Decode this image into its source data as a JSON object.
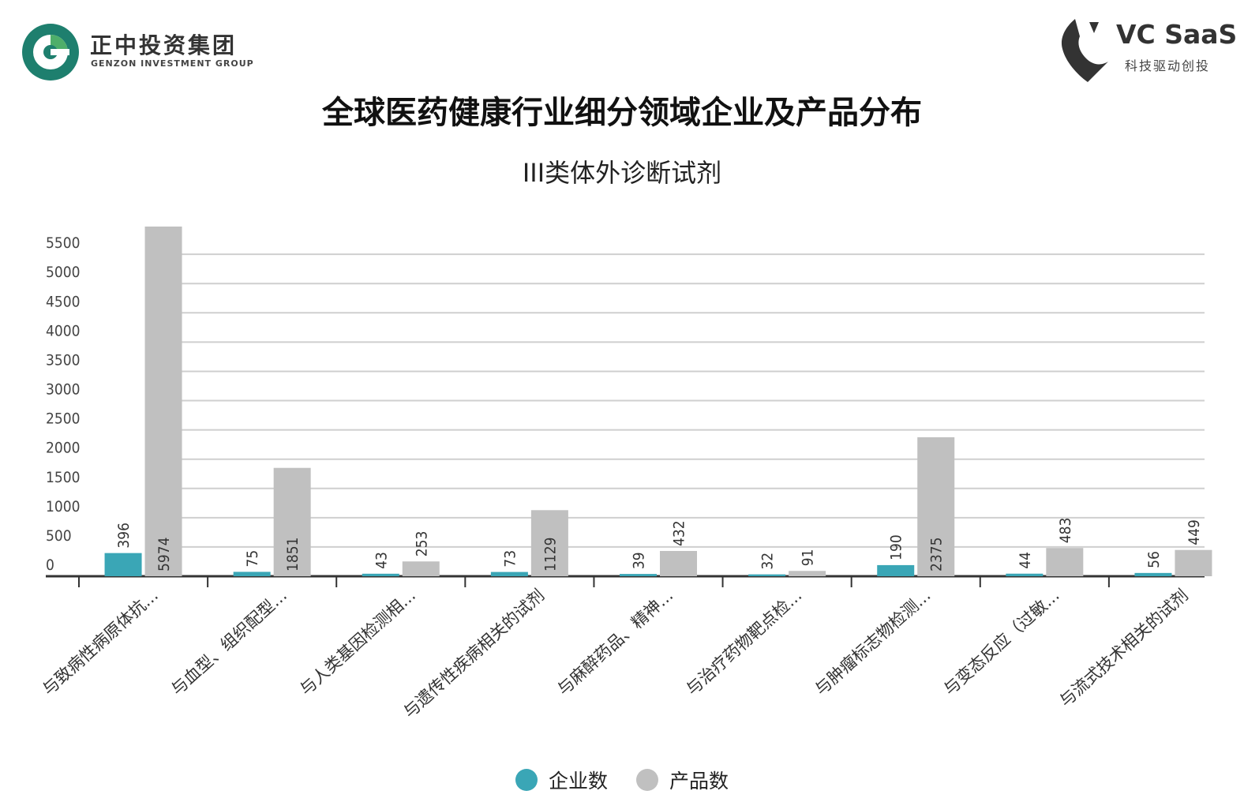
{
  "header": {
    "company_name": "正中投资集团",
    "company_name_en": "GENZON INVESTMENT GROUP",
    "brand_name": "VC SaaS",
    "brand_tagline": "科技驱动创投",
    "logo_colors": {
      "teal": "#1e7f6e",
      "green": "#4fae6a",
      "dark": "#333333"
    },
    "page_title": "全球医药健康行业细分领域企业及产品分布"
  },
  "chart_data": {
    "type": "bar",
    "title": "III类体外诊断试剂",
    "xlabel": "",
    "ylabel": "",
    "categories": [
      "与致病性病原体抗...",
      "与血型、组织配型...",
      "与人类基因检测相...",
      "与遗传性疾病相关的试剂",
      "与麻醉药品、精神...",
      "与治疗药物靶点检...",
      "与肿瘤标志物检测...",
      "与变态反应（过敏...",
      "与流式技术相关的试剂"
    ],
    "series": [
      {
        "name": "企业数",
        "color": "#3aa6b6",
        "values": [
          396,
          75,
          43,
          73,
          39,
          32,
          190,
          44,
          56
        ]
      },
      {
        "name": "产品数",
        "color": "#c0c0c0",
        "values": [
          5974,
          1851,
          253,
          1129,
          432,
          91,
          2375,
          483,
          449
        ]
      }
    ],
    "yticks": [
      0,
      500,
      1000,
      1500,
      2000,
      2500,
      3000,
      3500,
      4000,
      4500,
      5000,
      5500
    ],
    "ylim": [
      0,
      5974
    ],
    "grid": true,
    "legend_position": "bottom"
  }
}
